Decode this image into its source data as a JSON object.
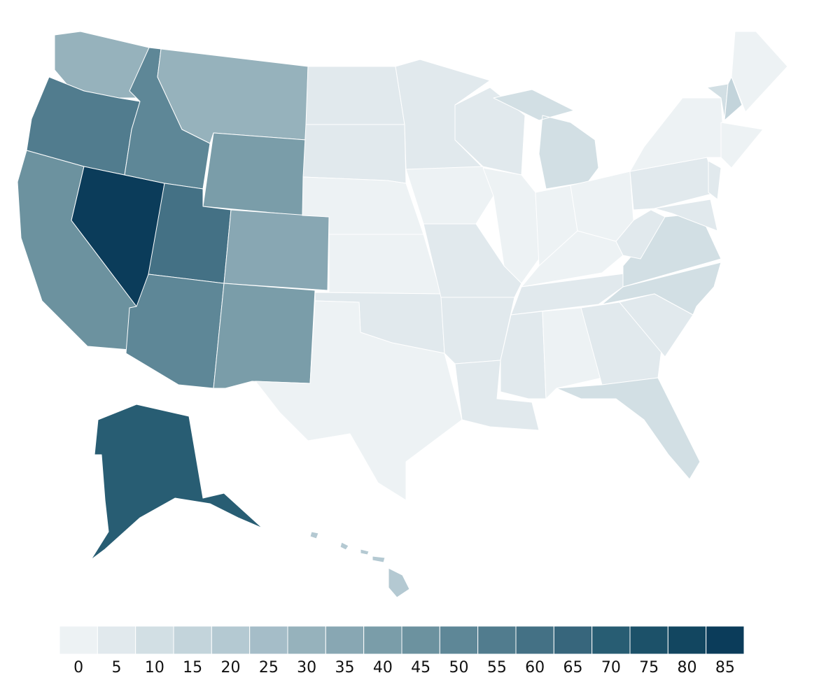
{
  "chart_data": {
    "type": "choropleth",
    "values": [
      30,
      55,
      45,
      85,
      50,
      30,
      40,
      60,
      35,
      50,
      40,
      5,
      5,
      0,
      0,
      5,
      0,
      5,
      0,
      5,
      5,
      5,
      5,
      0,
      10,
      0,
      0,
      0,
      5,
      5,
      0,
      5,
      10,
      5,
      10,
      10,
      5,
      5,
      0,
      10,
      15,
      0,
      0,
      5,
      5,
      70,
      20
    ],
    "legend_ticks": [
      0,
      5,
      10,
      15,
      20,
      25,
      30,
      35,
      40,
      45,
      50,
      55,
      60,
      65,
      70,
      75,
      80,
      85
    ],
    "colors": [
      "#edf2f4",
      "#e1e9ed",
      "#d2dfe4",
      "#c3d4db",
      "#b4c9d2",
      "#a5bdc8",
      "#96b2bc",
      "#88a7b3",
      "#7a9da9",
      "#6c929f",
      "#5e8797",
      "#517c8e",
      "#447185",
      "#37667c",
      "#285d73",
      "#1c5169",
      "#124660",
      "#0b3c5a"
    ]
  }
}
